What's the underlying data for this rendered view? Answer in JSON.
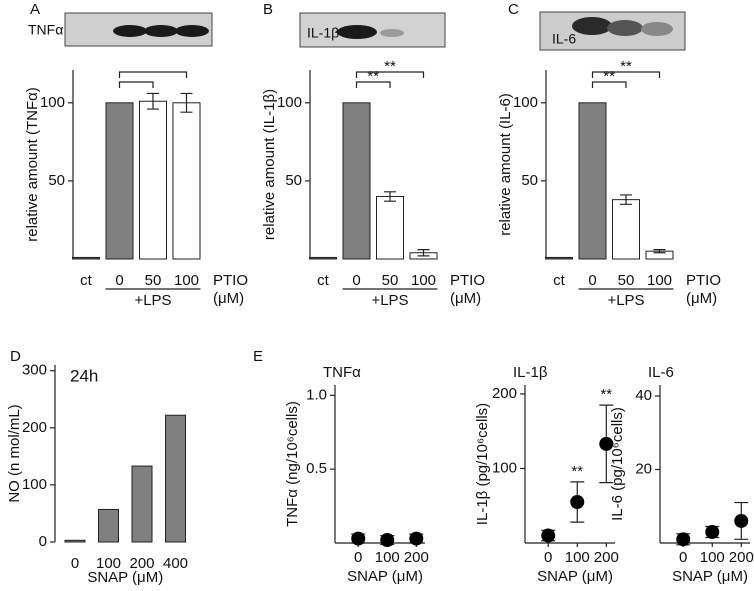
{
  "chart_data": [
    {
      "type": "bar",
      "panel": "A",
      "blot_label": "TNFα",
      "categories": [
        "ct",
        "0",
        "50",
        "100"
      ],
      "values": [
        1,
        100,
        101,
        100
      ],
      "errors": [
        null,
        null,
        5,
        6
      ],
      "colors": [
        "#555555",
        "#808080",
        "#ffffff",
        "#ffffff"
      ],
      "ylabel": "relative amount (TNFα)",
      "ylim": [
        0,
        121
      ],
      "yticks": [
        50,
        100
      ],
      "x_label": [
        "PTIO",
        "(μM)"
      ],
      "group_label": "+LPS",
      "annotations": [
        {
          "between": [
            "0",
            "50"
          ]
        },
        {
          "between": [
            "0",
            "100"
          ]
        }
      ]
    },
    {
      "type": "bar",
      "panel": "B",
      "blot_label": "IL-1β",
      "categories": [
        "ct",
        "0",
        "50",
        "100"
      ],
      "values": [
        1,
        100,
        40,
        4
      ],
      "errors": [
        null,
        null,
        3,
        2
      ],
      "colors": [
        "#555555",
        "#808080",
        "#ffffff",
        "#ffffff"
      ],
      "ylabel": "relative amount (IL-1β)",
      "ylim": [
        0,
        121
      ],
      "yticks": [
        50,
        100
      ],
      "x_label": [
        "PTIO",
        "(μM)"
      ],
      "group_label": "+LPS",
      "annotations": [
        {
          "between": [
            "0",
            "50"
          ],
          "label": "**"
        },
        {
          "between": [
            "0",
            "100"
          ],
          "label": "**"
        }
      ]
    },
    {
      "type": "bar",
      "panel": "C",
      "blot_label": "IL-6",
      "categories": [
        "ct",
        "0",
        "50",
        "100"
      ],
      "values": [
        1,
        100,
        38,
        5
      ],
      "errors": [
        null,
        null,
        3,
        1
      ],
      "colors": [
        "#555555",
        "#808080",
        "#ffffff",
        "#ffffff"
      ],
      "ylabel": "relative amount (IL-6)",
      "ylim": [
        0,
        121
      ],
      "yticks": [
        50,
        100
      ],
      "x_label": [
        "PTIO",
        "(μM)"
      ],
      "group_label": "+LPS",
      "annotations": [
        {
          "between": [
            "0",
            "50"
          ],
          "label": "**"
        },
        {
          "between": [
            "0",
            "100"
          ],
          "label": "**"
        }
      ]
    },
    {
      "type": "bar",
      "panel": "D",
      "annotation": "24h",
      "categories": [
        "0",
        "100",
        "200",
        "400"
      ],
      "values": [
        3,
        57,
        133,
        222
      ],
      "color": "#808080",
      "ylabel": "NO (n mol/mL)",
      "ylim": [
        0,
        310
      ],
      "yticks": [
        0,
        100,
        200,
        300
      ],
      "xlabel": "SNAP (μM)"
    },
    {
      "type": "scatter",
      "panel": "E",
      "title": "TNFα",
      "x": [
        0,
        100,
        200
      ],
      "values": [
        0.03,
        0.02,
        0.03
      ],
      "errors": [
        0.03,
        0.03,
        0.03
      ],
      "xlim": [
        -80,
        230
      ],
      "xticks": [
        0,
        100,
        200
      ],
      "ylim": [
        0,
        1.07
      ],
      "yticks": [
        0.5,
        {
          "value": 1,
          "label": "1.0"
        }
      ],
      "ylabel": "TNFα (ng/10⁶cells)",
      "xlabel": "SNAP (μM)"
    },
    {
      "type": "scatter",
      "title": "IL-1β",
      "x": [
        0,
        100,
        200
      ],
      "values": [
        10,
        55,
        133
      ],
      "errors": [
        7,
        27,
        52
      ],
      "point_labels": [
        null,
        "**",
        "**"
      ],
      "xlim": [
        -80,
        230
      ],
      "xticks": [
        0,
        100,
        200
      ],
      "ylim": [
        0,
        212
      ],
      "yticks": [
        100,
        200
      ],
      "ylabel": "IL-1β (pg/10⁶cells)",
      "xlabel": "SNAP (μM)"
    },
    {
      "type": "scatter",
      "title": "IL-6",
      "x": [
        0,
        100,
        200
      ],
      "values": [
        1,
        3,
        6
      ],
      "errors": [
        1.5,
        1.5,
        5
      ],
      "xlim": [
        -80,
        230
      ],
      "xticks": [
        0,
        100,
        200
      ],
      "ylim": [
        0,
        43
      ],
      "yticks": [
        20,
        40
      ],
      "ylabel": "IL-6 (pg/10⁶cells)",
      "xlabel": "SNAP (μM)"
    }
  ]
}
